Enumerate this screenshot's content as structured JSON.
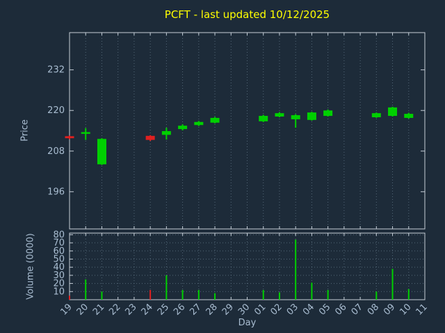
{
  "title": {
    "text": "PCFT - last updated 10/12/2025"
  },
  "axes": {
    "price_label": "Price",
    "volume_label": "Volume (0000)",
    "day_label": "Day"
  },
  "colors": {
    "background": "#1d2b39",
    "title": "#ffff00",
    "tick_text": "#a9bdd1",
    "axis": "#c6cfd8",
    "grid": "#546878",
    "up": "#00d000",
    "down": "#e02020"
  },
  "chart_data": [
    {
      "type": "candlestick",
      "title": "PCFT - last updated 10/12/2025",
      "xlabel": "Day",
      "ylabel": "Price",
      "ylim": [
        185,
        243
      ],
      "yticks": [
        196,
        208,
        220,
        232
      ],
      "grid": "vertical-dotted",
      "categories": [
        "19",
        "20",
        "21",
        "22",
        "23",
        "24",
        "25",
        "26",
        "27",
        "28",
        "29",
        "30",
        "01",
        "02",
        "03",
        "04",
        "05",
        "06",
        "07",
        "08",
        "09",
        "10",
        "11"
      ],
      "candles": [
        {
          "o": 212.4,
          "h": 212.6,
          "l": 211.5,
          "c": 211.8,
          "dir": "down"
        },
        {
          "o": 213.1,
          "h": 214.8,
          "l": 211.3,
          "c": 213.6,
          "dir": "up"
        },
        {
          "o": 204.1,
          "h": 211.8,
          "l": 203.9,
          "c": 211.6,
          "dir": "up"
        },
        null,
        null,
        {
          "o": 212.5,
          "h": 212.7,
          "l": 211.0,
          "c": 211.3,
          "dir": "down"
        },
        {
          "o": 212.8,
          "h": 214.9,
          "l": 211.4,
          "c": 213.9,
          "dir": "up"
        },
        {
          "o": 214.5,
          "h": 215.9,
          "l": 214.1,
          "c": 215.5,
          "dir": "up"
        },
        {
          "o": 215.7,
          "h": 216.9,
          "l": 215.4,
          "c": 216.6,
          "dir": "up"
        },
        {
          "o": 216.4,
          "h": 218.1,
          "l": 216.2,
          "c": 217.8,
          "dir": "up"
        },
        null,
        null,
        {
          "o": 216.8,
          "h": 218.7,
          "l": 216.6,
          "c": 218.4,
          "dir": "up"
        },
        {
          "o": 218.2,
          "h": 219.5,
          "l": 218.0,
          "c": 219.2,
          "dir": "up"
        },
        {
          "o": 217.4,
          "h": 218.9,
          "l": 214.9,
          "c": 218.6,
          "dir": "up"
        },
        {
          "o": 217.2,
          "h": 219.6,
          "l": 217.0,
          "c": 219.4,
          "dir": "up"
        },
        {
          "o": 218.4,
          "h": 220.3,
          "l": 218.2,
          "c": 220.0,
          "dir": "up"
        },
        null,
        null,
        {
          "o": 218.0,
          "h": 219.4,
          "l": 217.8,
          "c": 219.2,
          "dir": "up"
        },
        {
          "o": 218.4,
          "h": 221.1,
          "l": 218.2,
          "c": 220.9,
          "dir": "up"
        },
        {
          "o": 217.8,
          "h": 219.3,
          "l": 217.6,
          "c": 219.0,
          "dir": "up"
        },
        null
      ]
    },
    {
      "type": "bar",
      "ylabel": "Volume (0000)",
      "ylim": [
        0,
        82
      ],
      "yticks": [
        10,
        20,
        30,
        40,
        50,
        60,
        70,
        80
      ],
      "grid": "both-dotted",
      "categories": [
        "19",
        "20",
        "21",
        "22",
        "23",
        "24",
        "25",
        "26",
        "27",
        "28",
        "29",
        "30",
        "01",
        "02",
        "03",
        "04",
        "05",
        "06",
        "07",
        "08",
        "09",
        "10",
        "11"
      ],
      "values": [
        5,
        25,
        10,
        0,
        0,
        12,
        30,
        12,
        12,
        8,
        0,
        0,
        12,
        9,
        74,
        21,
        12,
        0,
        0,
        10,
        38,
        13,
        0
      ],
      "bar_colors": [
        "down",
        "up",
        "up",
        null,
        null,
        "down",
        "up",
        "up",
        "up",
        "up",
        null,
        null,
        "up",
        "up",
        "up",
        "up",
        "up",
        null,
        null,
        "up",
        "up",
        "up",
        null
      ]
    }
  ]
}
